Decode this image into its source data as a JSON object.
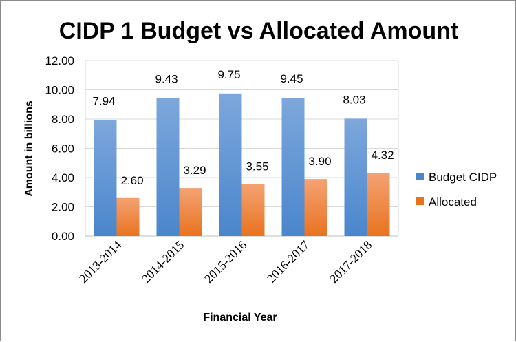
{
  "chart_data": {
    "type": "bar",
    "title": "CIDP 1 Budget vs Allocated Amount",
    "xlabel": "Financial Year",
    "ylabel": "Amount in billions",
    "categories": [
      "2013-2014",
      "2014-2015",
      "2015-2016",
      "2016-2017",
      "2017-2018"
    ],
    "series": [
      {
        "name": "Budget CIDP",
        "values": [
          7.94,
          9.43,
          9.75,
          9.45,
          8.03
        ],
        "labels": [
          "7.94",
          "9.43",
          "9.75",
          "9.45",
          "8.03"
        ],
        "color_top": "#7DA7DC",
        "color_bottom": "#4A86CC"
      },
      {
        "name": "Allocated",
        "values": [
          2.6,
          3.29,
          3.55,
          3.9,
          4.32
        ],
        "labels": [
          "2.60",
          "3.29",
          "3.55",
          "3.90",
          "4.32"
        ],
        "color_top": "#F4A273",
        "color_bottom": "#E8731F"
      }
    ],
    "ylim": [
      0,
      12
    ],
    "yticks": [
      "0.00",
      "2.00",
      "4.00",
      "6.00",
      "8.00",
      "10.00",
      "12.00"
    ],
    "grid": true,
    "legend": "right"
  }
}
